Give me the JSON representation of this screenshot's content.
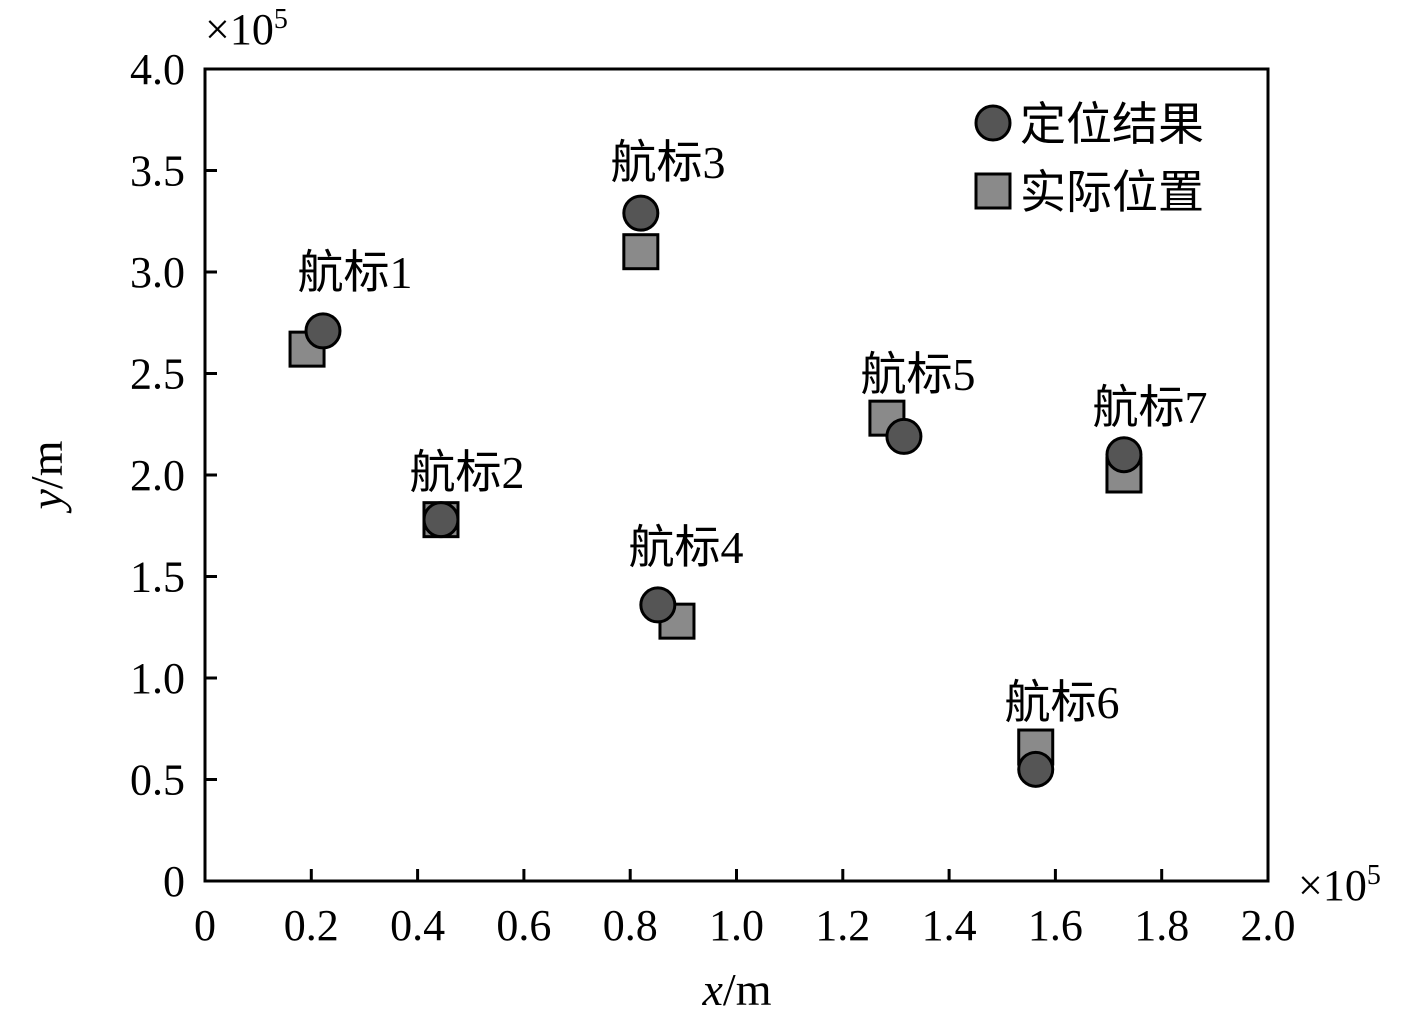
{
  "chart_data": {
    "type": "scatter",
    "title": "",
    "xlabel": "x/m",
    "ylabel": "y/m",
    "x_multiplier": "×10^5",
    "y_multiplier": "×10^5",
    "xlim": [
      0,
      2.0
    ],
    "ylim": [
      0,
      4.0
    ],
    "xticks": [
      "0",
      "0.2",
      "0.4",
      "0.6",
      "0.8",
      "1.0",
      "1.2",
      "1.4",
      "1.6",
      "1.8",
      "2.0"
    ],
    "yticks": [
      "0",
      "0.5",
      "1.0",
      "1.5",
      "2.0",
      "2.5",
      "3.0",
      "3.5",
      "4.0"
    ],
    "grid": false,
    "legend_position": "top-right",
    "series": [
      {
        "name": "定位结果",
        "marker": "circle",
        "color": "#555555",
        "points": [
          {
            "label": "航标1",
            "x": 0.222,
            "y": 2.71
          },
          {
            "label": "航标2",
            "x": 0.444,
            "y": 1.78
          },
          {
            "label": "航标3",
            "x": 0.82,
            "y": 3.29
          },
          {
            "label": "航标4",
            "x": 0.852,
            "y": 1.36
          },
          {
            "label": "航标5",
            "x": 1.315,
            "y": 2.19
          },
          {
            "label": "航标6",
            "x": 1.563,
            "y": 0.55
          },
          {
            "label": "航标7",
            "x": 1.729,
            "y": 2.1
          }
        ]
      },
      {
        "name": "实际位置",
        "marker": "square",
        "color": "#8a8a8a",
        "points": [
          {
            "label": "航标1",
            "x": 0.192,
            "y": 2.62
          },
          {
            "label": "航标2",
            "x": 0.444,
            "y": 1.78
          },
          {
            "label": "航标3",
            "x": 0.82,
            "y": 3.1
          },
          {
            "label": "航标4",
            "x": 0.888,
            "y": 1.28
          },
          {
            "label": "航标5",
            "x": 1.283,
            "y": 2.28
          },
          {
            "label": "航标6",
            "x": 1.563,
            "y": 0.66
          },
          {
            "label": "航标7",
            "x": 1.729,
            "y": 2.0
          }
        ]
      }
    ],
    "annotations": [
      "航标1",
      "航标2",
      "航标3",
      "航标4",
      "航标5",
      "航标6",
      "航标7"
    ]
  }
}
